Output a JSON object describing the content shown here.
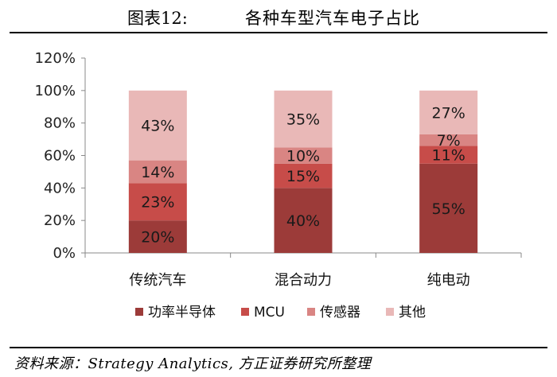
{
  "header": {
    "figure_no": "图表12:",
    "title": "各种车型汽车电子占比"
  },
  "source": "资料来源：Strategy Analytics, 方正证券研究所整理",
  "chart_data": {
    "type": "bar",
    "stacked": true,
    "categories": [
      "传统汽车",
      "混合动力",
      "纯电动"
    ],
    "series": [
      {
        "name": "功率半导体",
        "values": [
          20,
          40,
          55
        ],
        "labels": [
          "20%",
          "40%",
          "55%"
        ],
        "color": "#9c3b39"
      },
      {
        "name": "MCU",
        "values": [
          23,
          15,
          11
        ],
        "labels": [
          "23%",
          "15%",
          "11%"
        ],
        "color": "#c74c49"
      },
      {
        "name": "传感器",
        "values": [
          14,
          10,
          7
        ],
        "labels": [
          "14%",
          "10%",
          "7%"
        ],
        "color": "#d98583"
      },
      {
        "name": "其他",
        "values": [
          43,
          35,
          27
        ],
        "labels": [
          "43%",
          "35%",
          "27%"
        ],
        "color": "#e9b8b7"
      }
    ],
    "yticks": [
      "0%",
      "20%",
      "40%",
      "60%",
      "80%",
      "100%",
      "120%"
    ],
    "ylim": [
      0,
      120
    ],
    "legend_position": "bottom",
    "grid": false
  }
}
